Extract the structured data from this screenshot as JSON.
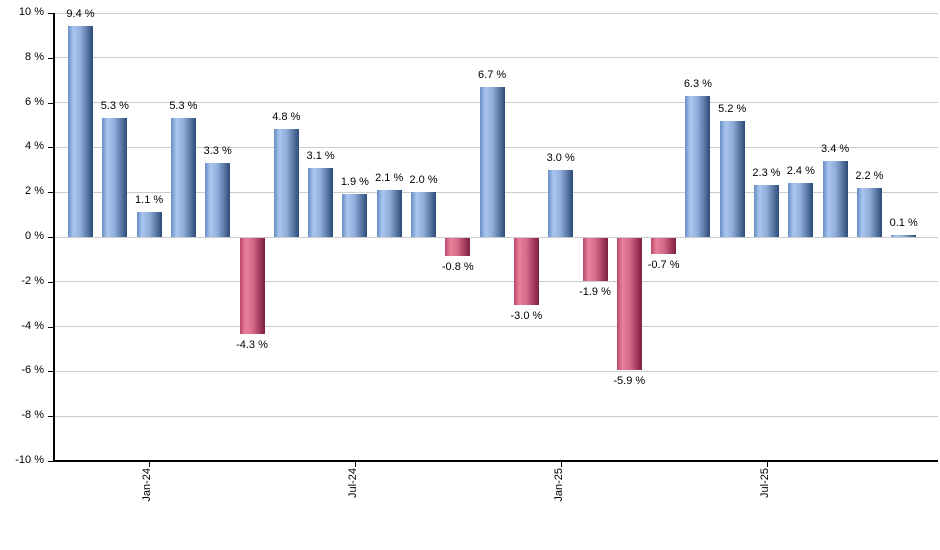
{
  "chart_data": {
    "type": "bar",
    "title": "",
    "unit": "%",
    "grid": true,
    "legend": false,
    "ylim": [
      -10,
      10
    ],
    "bars": [
      {
        "value": 9.4,
        "label": "9.4 %"
      },
      {
        "value": 5.3,
        "label": "5.3 %"
      },
      {
        "value": 1.1,
        "label": "1.1 %"
      },
      {
        "value": 5.3,
        "label": "5.3 %"
      },
      {
        "value": 3.3,
        "label": "3.3 %"
      },
      {
        "value": -4.3,
        "label": "-4.3 %"
      },
      {
        "value": 4.8,
        "label": "4.8 %"
      },
      {
        "value": 3.1,
        "label": "3.1 %"
      },
      {
        "value": 1.9,
        "label": "1.9 %"
      },
      {
        "value": 2.1,
        "label": "2.1 %"
      },
      {
        "value": 2.0,
        "label": "2.0 %"
      },
      {
        "value": -0.8,
        "label": "-0.8 %"
      },
      {
        "value": 6.7,
        "label": "6.7 %"
      },
      {
        "value": -3.0,
        "label": "-3.0 %"
      },
      {
        "value": 3.0,
        "label": "3.0 %"
      },
      {
        "value": -1.9,
        "label": "-1.9 %"
      },
      {
        "value": -5.9,
        "label": "-5.9 %"
      },
      {
        "value": -0.7,
        "label": "-0.7 %"
      },
      {
        "value": 6.3,
        "label": "6.3 %"
      },
      {
        "value": 5.2,
        "label": "5.2 %"
      },
      {
        "value": 2.3,
        "label": "2.3 %"
      },
      {
        "value": 2.4,
        "label": "2.4 %"
      },
      {
        "value": 3.4,
        "label": "3.4 %"
      },
      {
        "value": 2.2,
        "label": "2.2 %"
      },
      {
        "value": 0.1,
        "label": "0.1 %"
      }
    ],
    "x_ticks": [
      {
        "label": "Jan-24",
        "bar_index": 2
      },
      {
        "label": "Jul-24",
        "bar_index": 8
      },
      {
        "label": "Jan-25",
        "bar_index": 14
      },
      {
        "label": "Jul-25",
        "bar_index": 20
      }
    ],
    "y_ticks": [
      {
        "label": "10 %",
        "value": 10
      },
      {
        "label": "8 %",
        "value": 8
      },
      {
        "label": "6 %",
        "value": 6
      },
      {
        "label": "4 %",
        "value": 4
      },
      {
        "label": "2 %",
        "value": 2
      },
      {
        "label": "0 %",
        "value": 0
      },
      {
        "label": "-2 %",
        "value": -2
      },
      {
        "label": "-4 %",
        "value": -4
      },
      {
        "label": "-6 %",
        "value": -6
      },
      {
        "label": "-8 %",
        "value": -8
      },
      {
        "label": "-10 %",
        "value": -10
      }
    ],
    "colors": {
      "positive_bar_light": "#aac6f0",
      "positive_bar_edge": "#2d4b79",
      "negative_bar_light": "#e8819c",
      "negative_bar_edge": "#7b2040",
      "gridline": "#cccccc",
      "axis": "#000000",
      "label_text": "#000000",
      "background": "#ffffff"
    }
  }
}
